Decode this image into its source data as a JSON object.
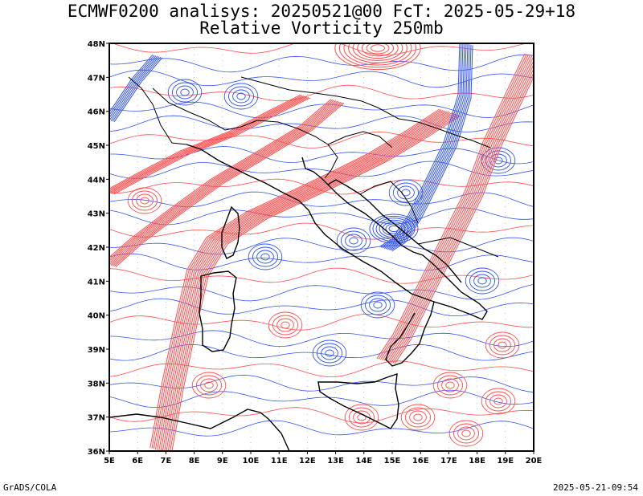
{
  "title": {
    "line1": "ECMWF0200 analisys: 20250521@00 FcT: 2025-05-29+18",
    "line2": "Relative Vorticity 250mb"
  },
  "map": {
    "lon_range": [
      5,
      20
    ],
    "lat_range": [
      36,
      48
    ],
    "lon_ticks": [
      "5E",
      "6E",
      "7E",
      "8E",
      "9E",
      "10E",
      "11E",
      "12E",
      "13E",
      "14E",
      "15E",
      "16E",
      "17E",
      "18E",
      "19E",
      "20E"
    ],
    "lat_ticks": [
      "36N",
      "37N",
      "38N",
      "39N",
      "40N",
      "41N",
      "42N",
      "43N",
      "44N",
      "45N",
      "46N",
      "47N",
      "48N"
    ],
    "colors": {
      "positive": "#ff4d4d",
      "negative": "#3355ee",
      "coast": "#000000"
    }
  },
  "footer": {
    "left": "GrADS/COLA",
    "right": "2025-05-21-09:54"
  }
}
